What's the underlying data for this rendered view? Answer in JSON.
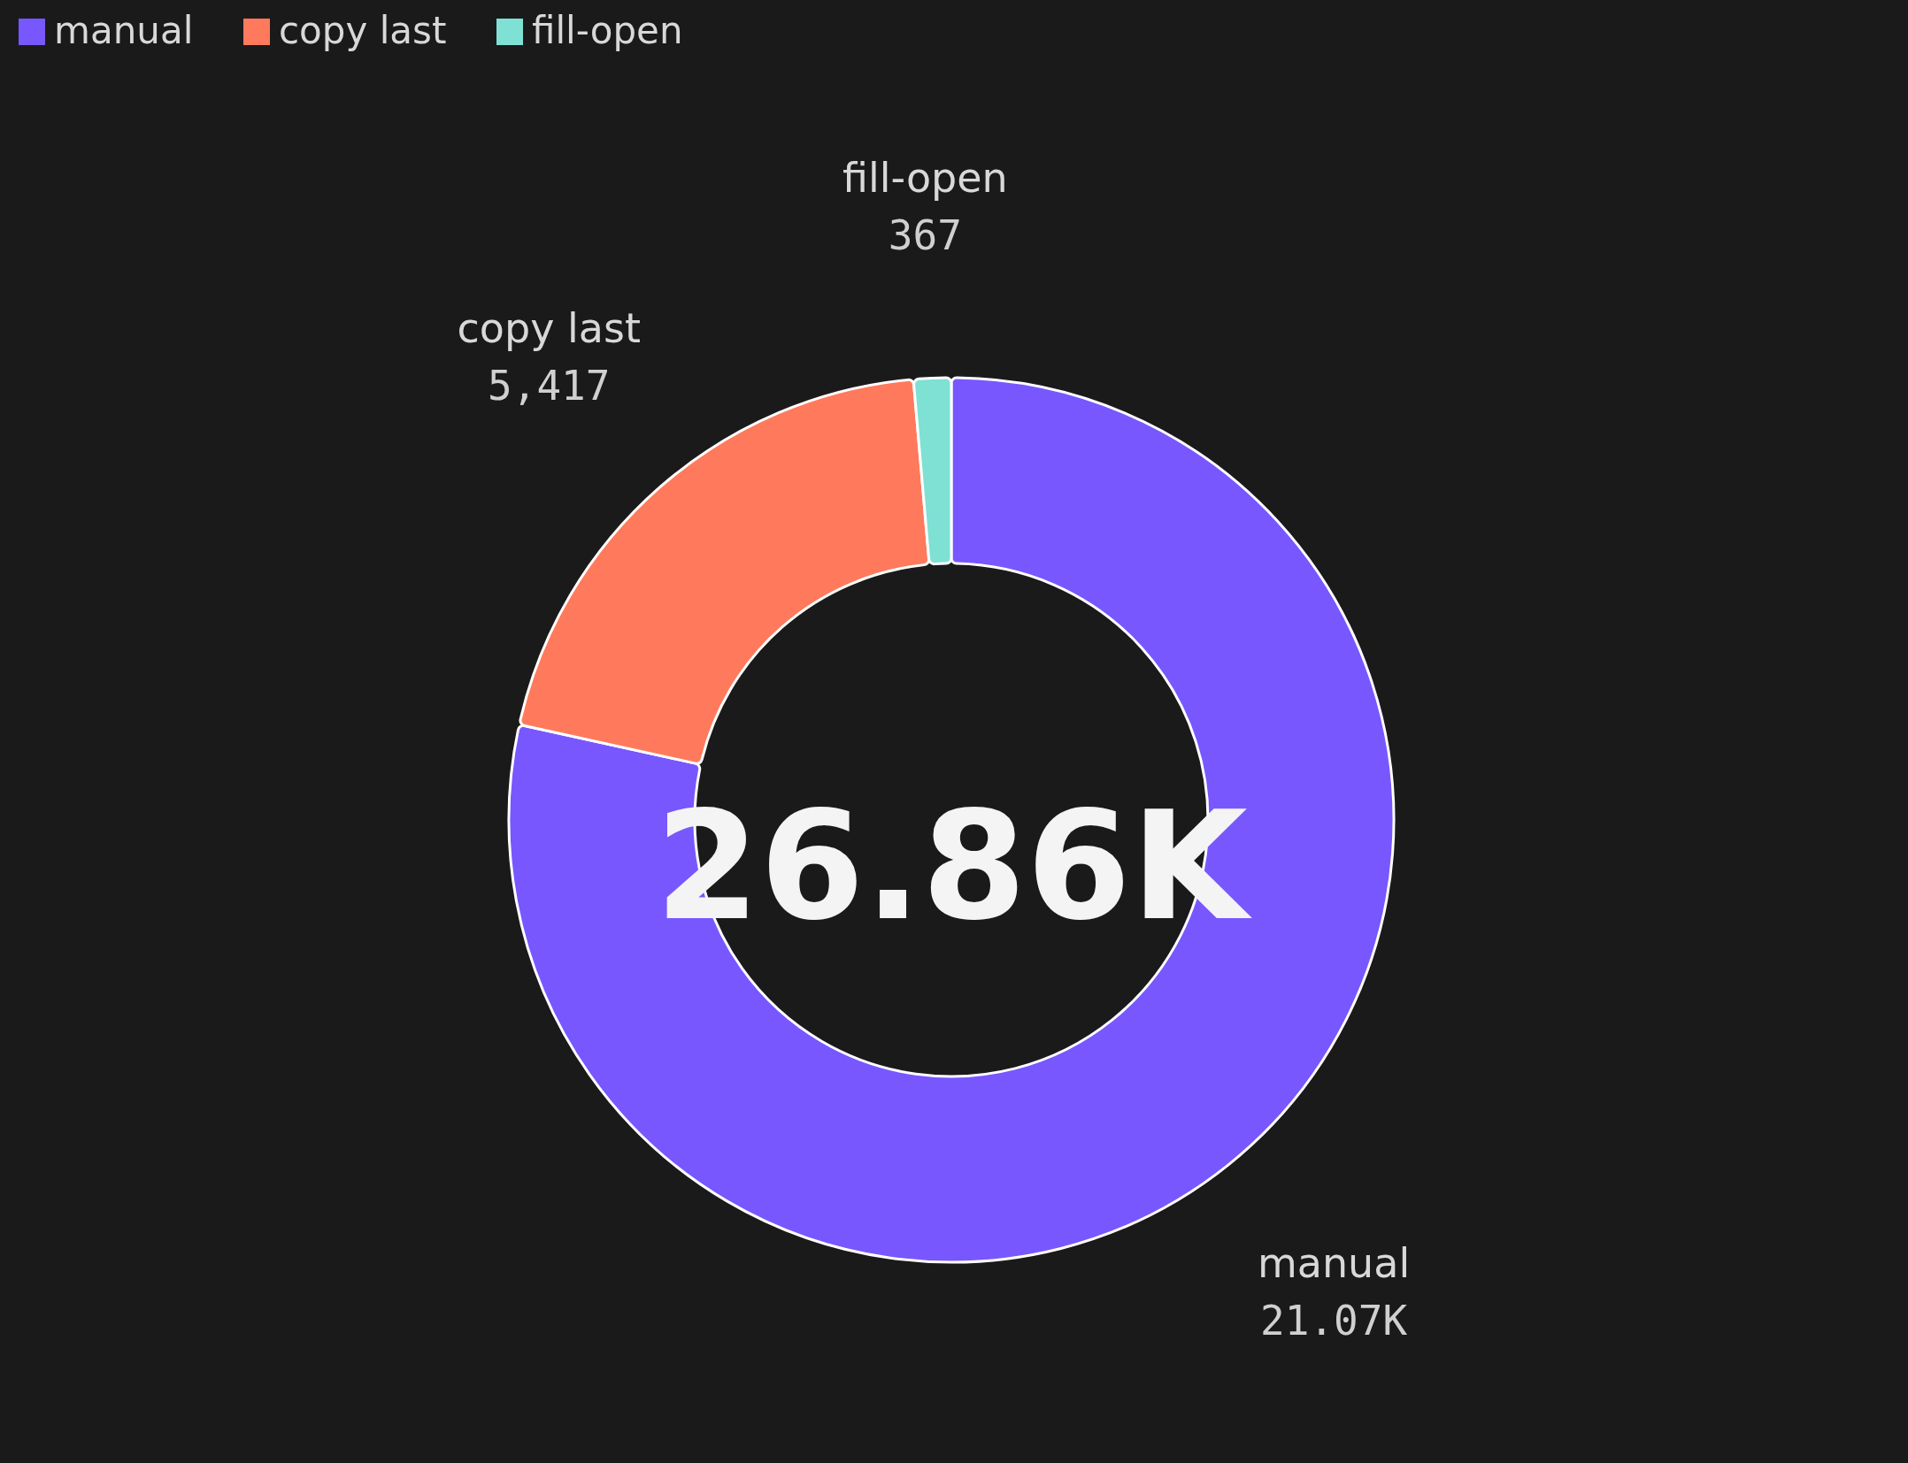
{
  "chart_data": {
    "type": "donut",
    "categories": [
      "manual",
      "copy last",
      "fill-open"
    ],
    "values": [
      21070,
      5417,
      367
    ],
    "colors": [
      "#7857ff",
      "#ff7a5c",
      "#7fe0d4"
    ],
    "value_labels": [
      "21.07K",
      "5,417",
      "367"
    ],
    "annotations": [
      "26.86K"
    ],
    "legend": "top"
  }
}
